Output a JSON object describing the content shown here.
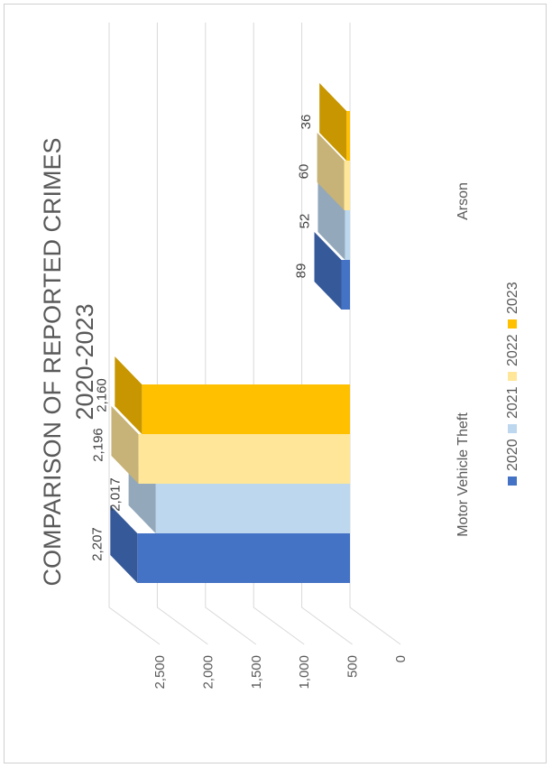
{
  "chart_data": {
    "type": "bar",
    "title_line1": "COMPARISON OF REPORTED CRIMES",
    "title_line2": "2020-2023",
    "categories": [
      "Motor Vehicle Theft",
      "Arson"
    ],
    "series": [
      {
        "name": "2020",
        "values": [
          2207,
          89
        ],
        "color": "#4472C4"
      },
      {
        "name": "2021",
        "values": [
          2017,
          52
        ],
        "color": "#BDD7EE"
      },
      {
        "name": "2022",
        "values": [
          2196,
          60
        ],
        "color": "#FFE699"
      },
      {
        "name": "2023",
        "values": [
          2160,
          36
        ],
        "color": "#FFC000"
      }
    ],
    "value_labels": [
      [
        "2,207",
        "89"
      ],
      [
        "2,017",
        "52"
      ],
      [
        "2,196",
        "60"
      ],
      [
        "2,160",
        "36"
      ]
    ],
    "ylim": [
      0,
      2500
    ],
    "ticks": [
      "0",
      "500",
      "1,000",
      "1,500",
      "2,000",
      "2,500"
    ],
    "grid": true,
    "legend_position": "bottom",
    "orientation": "rotated 90 degrees counter-clockwise",
    "style": "3d-clustered-column"
  }
}
